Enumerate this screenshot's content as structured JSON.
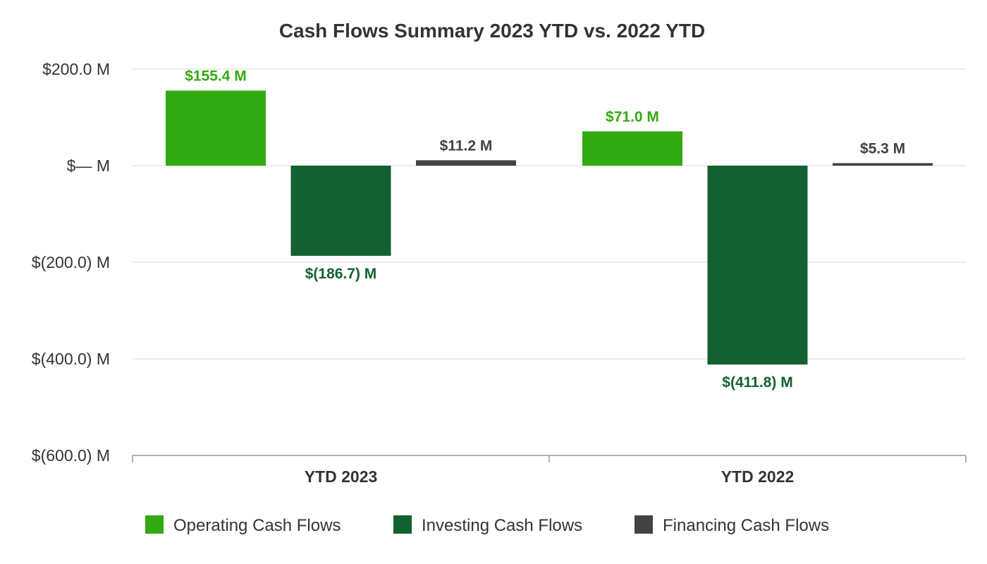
{
  "chart_data": {
    "type": "bar",
    "title": "Cash Flows Summary 2023 YTD vs. 2022 YTD",
    "categories": [
      "YTD 2023",
      "YTD 2022"
    ],
    "series": [
      {
        "name": "Operating Cash Flows",
        "color": "#33aa11",
        "values": [
          155.4,
          71.0
        ],
        "labels": [
          "$155.4 M",
          "$71.0 M"
        ]
      },
      {
        "name": "Investing Cash Flows",
        "color": "#136132",
        "values": [
          -186.7,
          -411.8
        ],
        "labels": [
          "$(186.7) M",
          "$(411.8) M"
        ]
      },
      {
        "name": "Financing Cash Flows",
        "color": "#434343",
        "values": [
          11.2,
          5.3
        ],
        "labels": [
          "$11.2 M",
          "$5.3 M"
        ]
      }
    ],
    "ylim": [
      -600,
      200
    ],
    "yticks": [
      200,
      0,
      -200,
      -400,
      -600
    ],
    "ytick_labels": [
      "$200.0 M",
      "$— M",
      "$(200.0) M",
      "$(400.0) M",
      "$(600.0) M"
    ],
    "grid": true,
    "legend_position": "bottom"
  }
}
